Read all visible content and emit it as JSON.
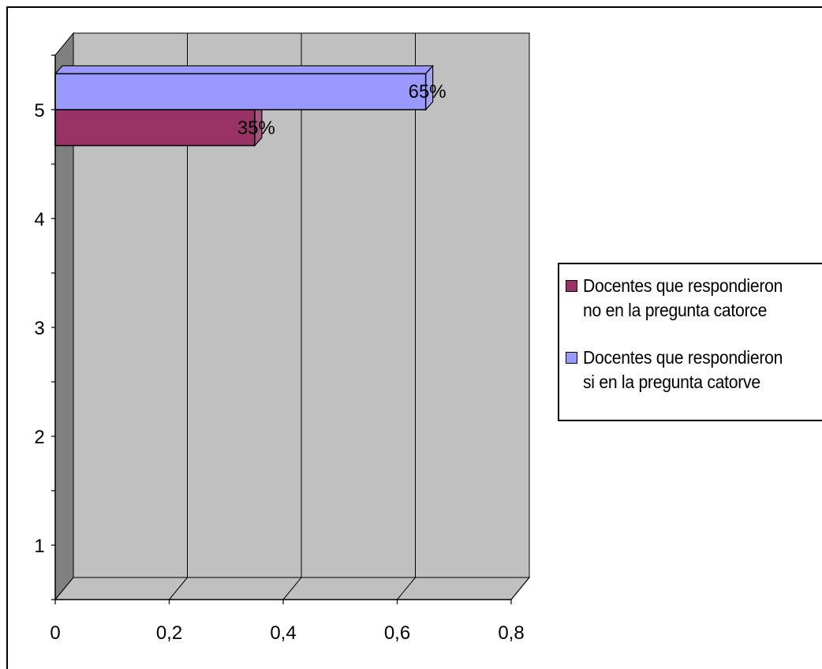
{
  "chart_data": {
    "type": "bar",
    "orientation": "horizontal",
    "three_d": true,
    "categories": [
      "1",
      "2",
      "3",
      "4",
      "5"
    ],
    "series": [
      {
        "name": "Docentes que respondieron no en la pregunta catorce",
        "values": [
          null,
          null,
          null,
          null,
          0.35
        ],
        "labels": [
          null,
          null,
          null,
          null,
          "35%"
        ],
        "color": "#993366"
      },
      {
        "name": "Docentes que respondieron si en la pregunta catorve",
        "values": [
          null,
          null,
          null,
          null,
          0.65
        ],
        "labels": [
          null,
          null,
          null,
          null,
          "65%"
        ],
        "color": "#9999ff"
      }
    ],
    "x_ticks": [
      "0",
      "0,2",
      "0,4",
      "0,6",
      "0,8"
    ],
    "xlim": [
      0,
      0.8
    ],
    "grid": true,
    "legend_position": "right",
    "plot_background": "#c0c0c0"
  },
  "legend": {
    "items": [
      {
        "line1": "Docentes que respondieron",
        "line2": "no en la pregunta catorce",
        "color": "#993366"
      },
      {
        "line1": "Docentes que respondieron",
        "line2": "si en la pregunta catorve",
        "color": "#9999ff"
      }
    ]
  }
}
